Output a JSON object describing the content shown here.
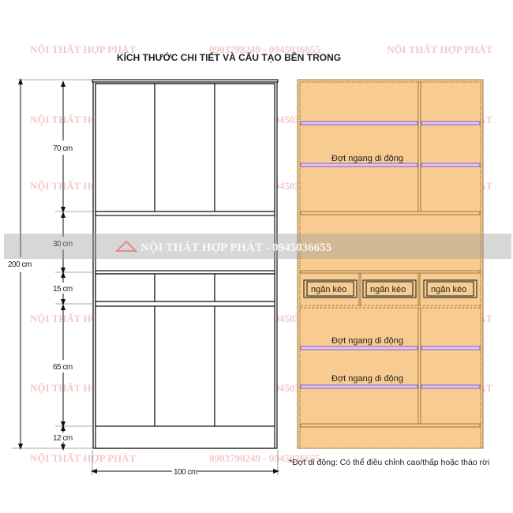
{
  "title": "KÍCH THƯỚC CHI TIẾT VÀ CẤU TẠO BÊN TRONG",
  "watermark": {
    "brand": "NỘI THẤT HỢP PHÁT",
    "phone": "0903798249 - 0945036655",
    "banner": "NỘI THẤT HỢP PHÁT - 0945036655"
  },
  "dimensions": {
    "total_height": "200 cm",
    "width": "100 cm",
    "sections": [
      "70 cm",
      "30 cm",
      "15 cm",
      "65 cm",
      "12 cm"
    ]
  },
  "interior": {
    "shelf_label": "Đợt ngang di động",
    "drawer_label": "ngăn kéo",
    "footnote": "*Đợt di động: Có thể điều chỉnh cao/thấp hoặc tháo rời"
  },
  "colors": {
    "wood": "#f8cc91",
    "wood_edge": "#9a7440",
    "shelf": "#8a6fd0",
    "watermark": "#f3c9c9"
  }
}
